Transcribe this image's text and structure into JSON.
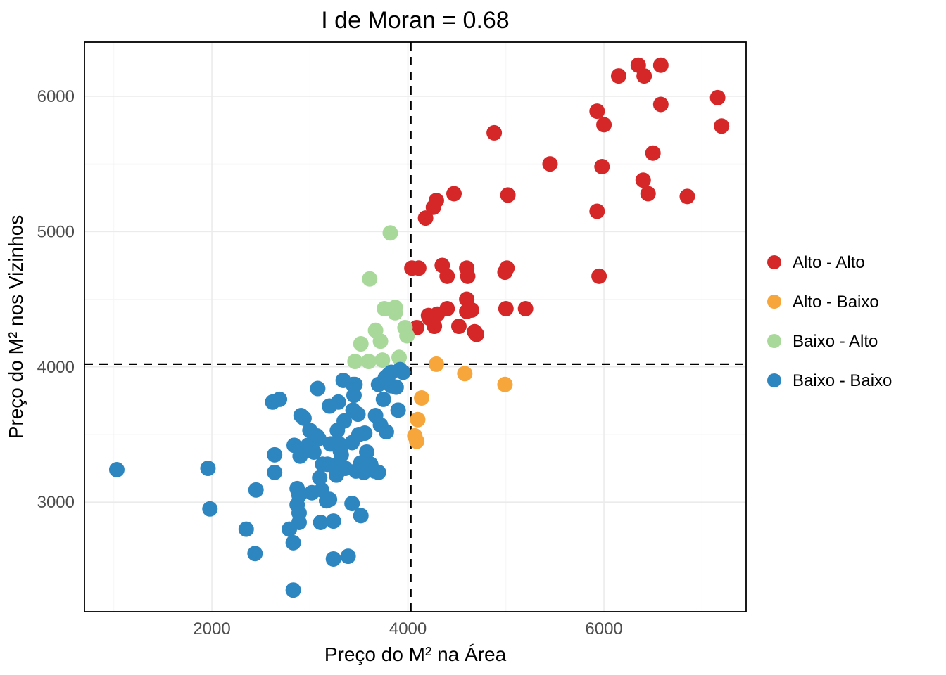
{
  "chart": {
    "type": "scatter",
    "title": "I de Moran = 0.68",
    "title_fontsize": 34,
    "xlabel": "Preço do M² na Área",
    "ylabel": "Preço do M² nos Vizinhos",
    "label_fontsize": 28,
    "tick_fontsize": 24,
    "background_color": "#ffffff",
    "panel_background": "#ffffff",
    "panel_border_color": "#000000",
    "grid_major_color": "#ebebeb",
    "grid_minor_color": "#f4f4f4",
    "xlim": [
      700,
      7450
    ],
    "ylim": [
      2190,
      6400
    ],
    "x_ticks": [
      2000,
      4000,
      6000
    ],
    "y_ticks": [
      3000,
      4000,
      5000,
      6000
    ],
    "x_minor_ticks": [
      1000,
      3000,
      5000,
      7000
    ],
    "y_minor_ticks": [
      2500,
      3500,
      4500,
      5500
    ],
    "ref_vline_x": 4030,
    "ref_hline_y": 4020,
    "ref_line_color": "#000000",
    "ref_line_dash": "12 9",
    "marker_radius": 11,
    "marker_opacity": 1.0,
    "legend": {
      "title": "",
      "position": "right",
      "label_fontsize": 24,
      "items": [
        {
          "label": "Alto - Alto",
          "color": "#d62728"
        },
        {
          "label": "Alto - Baixo",
          "color": "#f6a63b"
        },
        {
          "label": "Baixo - Alto",
          "color": "#a8d99a"
        },
        {
          "label": "Baixo - Baixo",
          "color": "#2e86c1"
        }
      ]
    },
    "series": [
      {
        "name": "Alto - Alto",
        "color": "#d62728",
        "points": [
          [
            4040,
            4730
          ],
          [
            4090,
            4290
          ],
          [
            4110,
            4730
          ],
          [
            4180,
            5100
          ],
          [
            4210,
            4380
          ],
          [
            4220,
            4360
          ],
          [
            4270,
            4300
          ],
          [
            4290,
            5230
          ],
          [
            4260,
            5180
          ],
          [
            4300,
            4390
          ],
          [
            4350,
            4750
          ],
          [
            4400,
            4670
          ],
          [
            4400,
            4430
          ],
          [
            4470,
            5280
          ],
          [
            4520,
            4300
          ],
          [
            4600,
            4730
          ],
          [
            4600,
            4410
          ],
          [
            4600,
            4500
          ],
          [
            4610,
            4670
          ],
          [
            4650,
            4420
          ],
          [
            4680,
            4260
          ],
          [
            4700,
            4240
          ],
          [
            4880,
            5730
          ],
          [
            4990,
            4700
          ],
          [
            5000,
            4430
          ],
          [
            5010,
            4730
          ],
          [
            5020,
            5270
          ],
          [
            5200,
            4430
          ],
          [
            5450,
            5500
          ],
          [
            5930,
            5150
          ],
          [
            5930,
            5890
          ],
          [
            5980,
            5480
          ],
          [
            5950,
            4670
          ],
          [
            6000,
            5790
          ],
          [
            6150,
            6150
          ],
          [
            6350,
            6230
          ],
          [
            6400,
            5380
          ],
          [
            6410,
            6150
          ],
          [
            6450,
            5280
          ],
          [
            6500,
            5580
          ],
          [
            6580,
            5940
          ],
          [
            6580,
            6230
          ],
          [
            6850,
            5260
          ],
          [
            7160,
            5990
          ],
          [
            7200,
            5780
          ]
        ]
      },
      {
        "name": "Alto - Baixo",
        "color": "#f6a63b",
        "points": [
          [
            4070,
            3490
          ],
          [
            4090,
            3450
          ],
          [
            4100,
            3610
          ],
          [
            4140,
            3770
          ],
          [
            4290,
            4020
          ],
          [
            4580,
            3950
          ],
          [
            4990,
            3870
          ]
        ]
      },
      {
        "name": "Baixo - Alto",
        "color": "#a8d99a",
        "points": [
          [
            3460,
            4040
          ],
          [
            3520,
            4170
          ],
          [
            3600,
            4040
          ],
          [
            3610,
            4650
          ],
          [
            3670,
            4270
          ],
          [
            3720,
            4190
          ],
          [
            3740,
            4050
          ],
          [
            3760,
            4430
          ],
          [
            3820,
            4990
          ],
          [
            3870,
            4400
          ],
          [
            3870,
            4440
          ],
          [
            3910,
            4070
          ],
          [
            3970,
            4290
          ],
          [
            3990,
            4230
          ]
        ]
      },
      {
        "name": "Baixo - Baixo",
        "color": "#2e86c1",
        "points": [
          [
            1030,
            3240
          ],
          [
            1960,
            3250
          ],
          [
            1980,
            2950
          ],
          [
            2350,
            2800
          ],
          [
            2450,
            3090
          ],
          [
            2440,
            2620
          ],
          [
            2620,
            3740
          ],
          [
            2640,
            3220
          ],
          [
            2640,
            3350
          ],
          [
            2690,
            3760
          ],
          [
            2790,
            2800
          ],
          [
            2830,
            2700
          ],
          [
            2830,
            2350
          ],
          [
            2840,
            3420
          ],
          [
            2870,
            2980
          ],
          [
            2870,
            3100
          ],
          [
            2890,
            3050
          ],
          [
            2890,
            2920
          ],
          [
            2890,
            2850
          ],
          [
            2900,
            3340
          ],
          [
            2910,
            3640
          ],
          [
            2940,
            3620
          ],
          [
            2980,
            3420
          ],
          [
            3000,
            3530
          ],
          [
            3020,
            3070
          ],
          [
            3040,
            3370
          ],
          [
            3070,
            3490
          ],
          [
            3080,
            3840
          ],
          [
            3090,
            3470
          ],
          [
            3100,
            3180
          ],
          [
            3110,
            2850
          ],
          [
            3120,
            3090
          ],
          [
            3130,
            3280
          ],
          [
            3170,
            3010
          ],
          [
            3180,
            3280
          ],
          [
            3200,
            3710
          ],
          [
            3200,
            3020
          ],
          [
            3210,
            3430
          ],
          [
            3240,
            2860
          ],
          [
            3240,
            2580
          ],
          [
            3260,
            3270
          ],
          [
            3270,
            3200
          ],
          [
            3280,
            3530
          ],
          [
            3290,
            3740
          ],
          [
            3300,
            3430
          ],
          [
            3310,
            3380
          ],
          [
            3320,
            3350
          ],
          [
            3340,
            3900
          ],
          [
            3350,
            3600
          ],
          [
            3360,
            3250
          ],
          [
            3390,
            2600
          ],
          [
            3430,
            3440
          ],
          [
            3430,
            2990
          ],
          [
            3440,
            3680
          ],
          [
            3440,
            3870
          ],
          [
            3460,
            3870
          ],
          [
            3450,
            3790
          ],
          [
            3470,
            3230
          ],
          [
            3490,
            3650
          ],
          [
            3500,
            3500
          ],
          [
            3520,
            2900
          ],
          [
            3520,
            3290
          ],
          [
            3550,
            3220
          ],
          [
            3560,
            3510
          ],
          [
            3580,
            3370
          ],
          [
            3620,
            3280
          ],
          [
            3660,
            3230
          ],
          [
            3670,
            3640
          ],
          [
            3700,
            3220
          ],
          [
            3700,
            3870
          ],
          [
            3720,
            3570
          ],
          [
            3750,
            3760
          ],
          [
            3770,
            3920
          ],
          [
            3780,
            3520
          ],
          [
            3800,
            3940
          ],
          [
            3830,
            3960
          ],
          [
            3830,
            3860
          ],
          [
            3880,
            3850
          ],
          [
            3900,
            3680
          ],
          [
            3920,
            3980
          ],
          [
            3950,
            3960
          ]
        ]
      }
    ]
  }
}
